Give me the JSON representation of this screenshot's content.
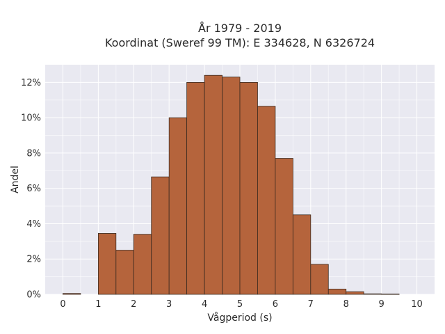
{
  "chart_data": {
    "type": "bar",
    "title": "År 1979 - 2019",
    "subtitle": "Koordinat (Sweref 99 TM): E 334628, N 6326724",
    "xlabel": "Vågperiod (s)",
    "ylabel": "Andel",
    "bin_width": 0.5,
    "bins": [
      {
        "x0": 0.0,
        "x1": 0.5,
        "value": 0.05
      },
      {
        "x0": 0.5,
        "x1": 1.0,
        "value": 0.0
      },
      {
        "x0": 1.0,
        "x1": 1.5,
        "value": 3.45
      },
      {
        "x0": 1.5,
        "x1": 2.0,
        "value": 2.5
      },
      {
        "x0": 2.0,
        "x1": 2.5,
        "value": 3.4
      },
      {
        "x0": 2.5,
        "x1": 3.0,
        "value": 6.65
      },
      {
        "x0": 3.0,
        "x1": 3.5,
        "value": 10.0
      },
      {
        "x0": 3.5,
        "x1": 4.0,
        "value": 12.0
      },
      {
        "x0": 4.0,
        "x1": 4.5,
        "value": 12.4
      },
      {
        "x0": 4.5,
        "x1": 5.0,
        "value": 12.3
      },
      {
        "x0": 5.0,
        "x1": 5.5,
        "value": 12.0
      },
      {
        "x0": 5.5,
        "x1": 6.0,
        "value": 10.65
      },
      {
        "x0": 6.0,
        "x1": 6.5,
        "value": 7.7
      },
      {
        "x0": 6.5,
        "x1": 7.0,
        "value": 4.5
      },
      {
        "x0": 7.0,
        "x1": 7.5,
        "value": 1.7
      },
      {
        "x0": 7.5,
        "x1": 8.0,
        "value": 0.3
      },
      {
        "x0": 8.0,
        "x1": 8.5,
        "value": 0.15
      },
      {
        "x0": 8.5,
        "x1": 9.0,
        "value": 0.03
      },
      {
        "x0": 9.0,
        "x1": 9.5,
        "value": 0.02
      },
      {
        "x0": 9.5,
        "x1": 10.0,
        "value": 0.0
      }
    ],
    "xlim": [
      -0.5,
      10.5
    ],
    "ylim": [
      0,
      13
    ],
    "xticks": [
      0,
      1,
      2,
      3,
      4,
      5,
      6,
      7,
      8,
      9,
      10
    ],
    "xtick_labels": [
      "0",
      "1",
      "2",
      "3",
      "4",
      "5",
      "6",
      "7",
      "8",
      "9",
      "10"
    ],
    "yticks": [
      0,
      2,
      4,
      6,
      8,
      10,
      12
    ],
    "ytick_labels": [
      "0%",
      "2%",
      "4%",
      "6%",
      "8%",
      "10%",
      "12%"
    ],
    "grid": true,
    "colors": {
      "bar": "#b5643c",
      "background": "#e9e9f1"
    }
  }
}
